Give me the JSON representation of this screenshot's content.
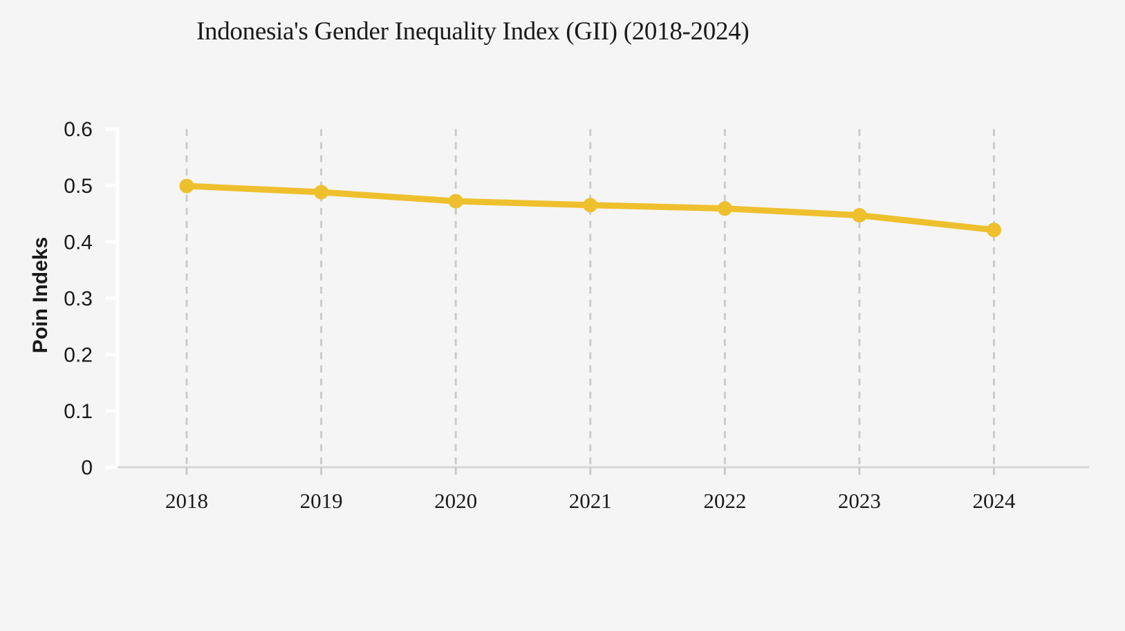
{
  "chart_data": {
    "type": "line",
    "title": "Indonesia's Gender Inequality Index (GII) (2018-2024)",
    "ylabel": "Poin Indeks",
    "xlabel": "",
    "categories": [
      "2018",
      "2019",
      "2020",
      "2021",
      "2022",
      "2023",
      "2024"
    ],
    "series": [
      {
        "name": "Gender Inequality Index",
        "values": [
          0.499,
          0.488,
          0.472,
          0.465,
          0.459,
          0.447,
          0.421
        ]
      }
    ],
    "y_ticks": [
      "0",
      "0.1",
      "0.2",
      "0.3",
      "0.4",
      "0.5",
      "0.6"
    ],
    "ylim": [
      0,
      0.6
    ],
    "grid": "vertical-dashed",
    "legend": "none",
    "marker": "circle"
  },
  "colors": {
    "background": "#F5F5F5",
    "line": "#EEC02D",
    "grid": "#CBCBCB",
    "axis_white": "#FFFFFF",
    "baseline": "#D8D8D8",
    "x_tick": "#C9C9C9",
    "text": "#1A1A1A"
  }
}
